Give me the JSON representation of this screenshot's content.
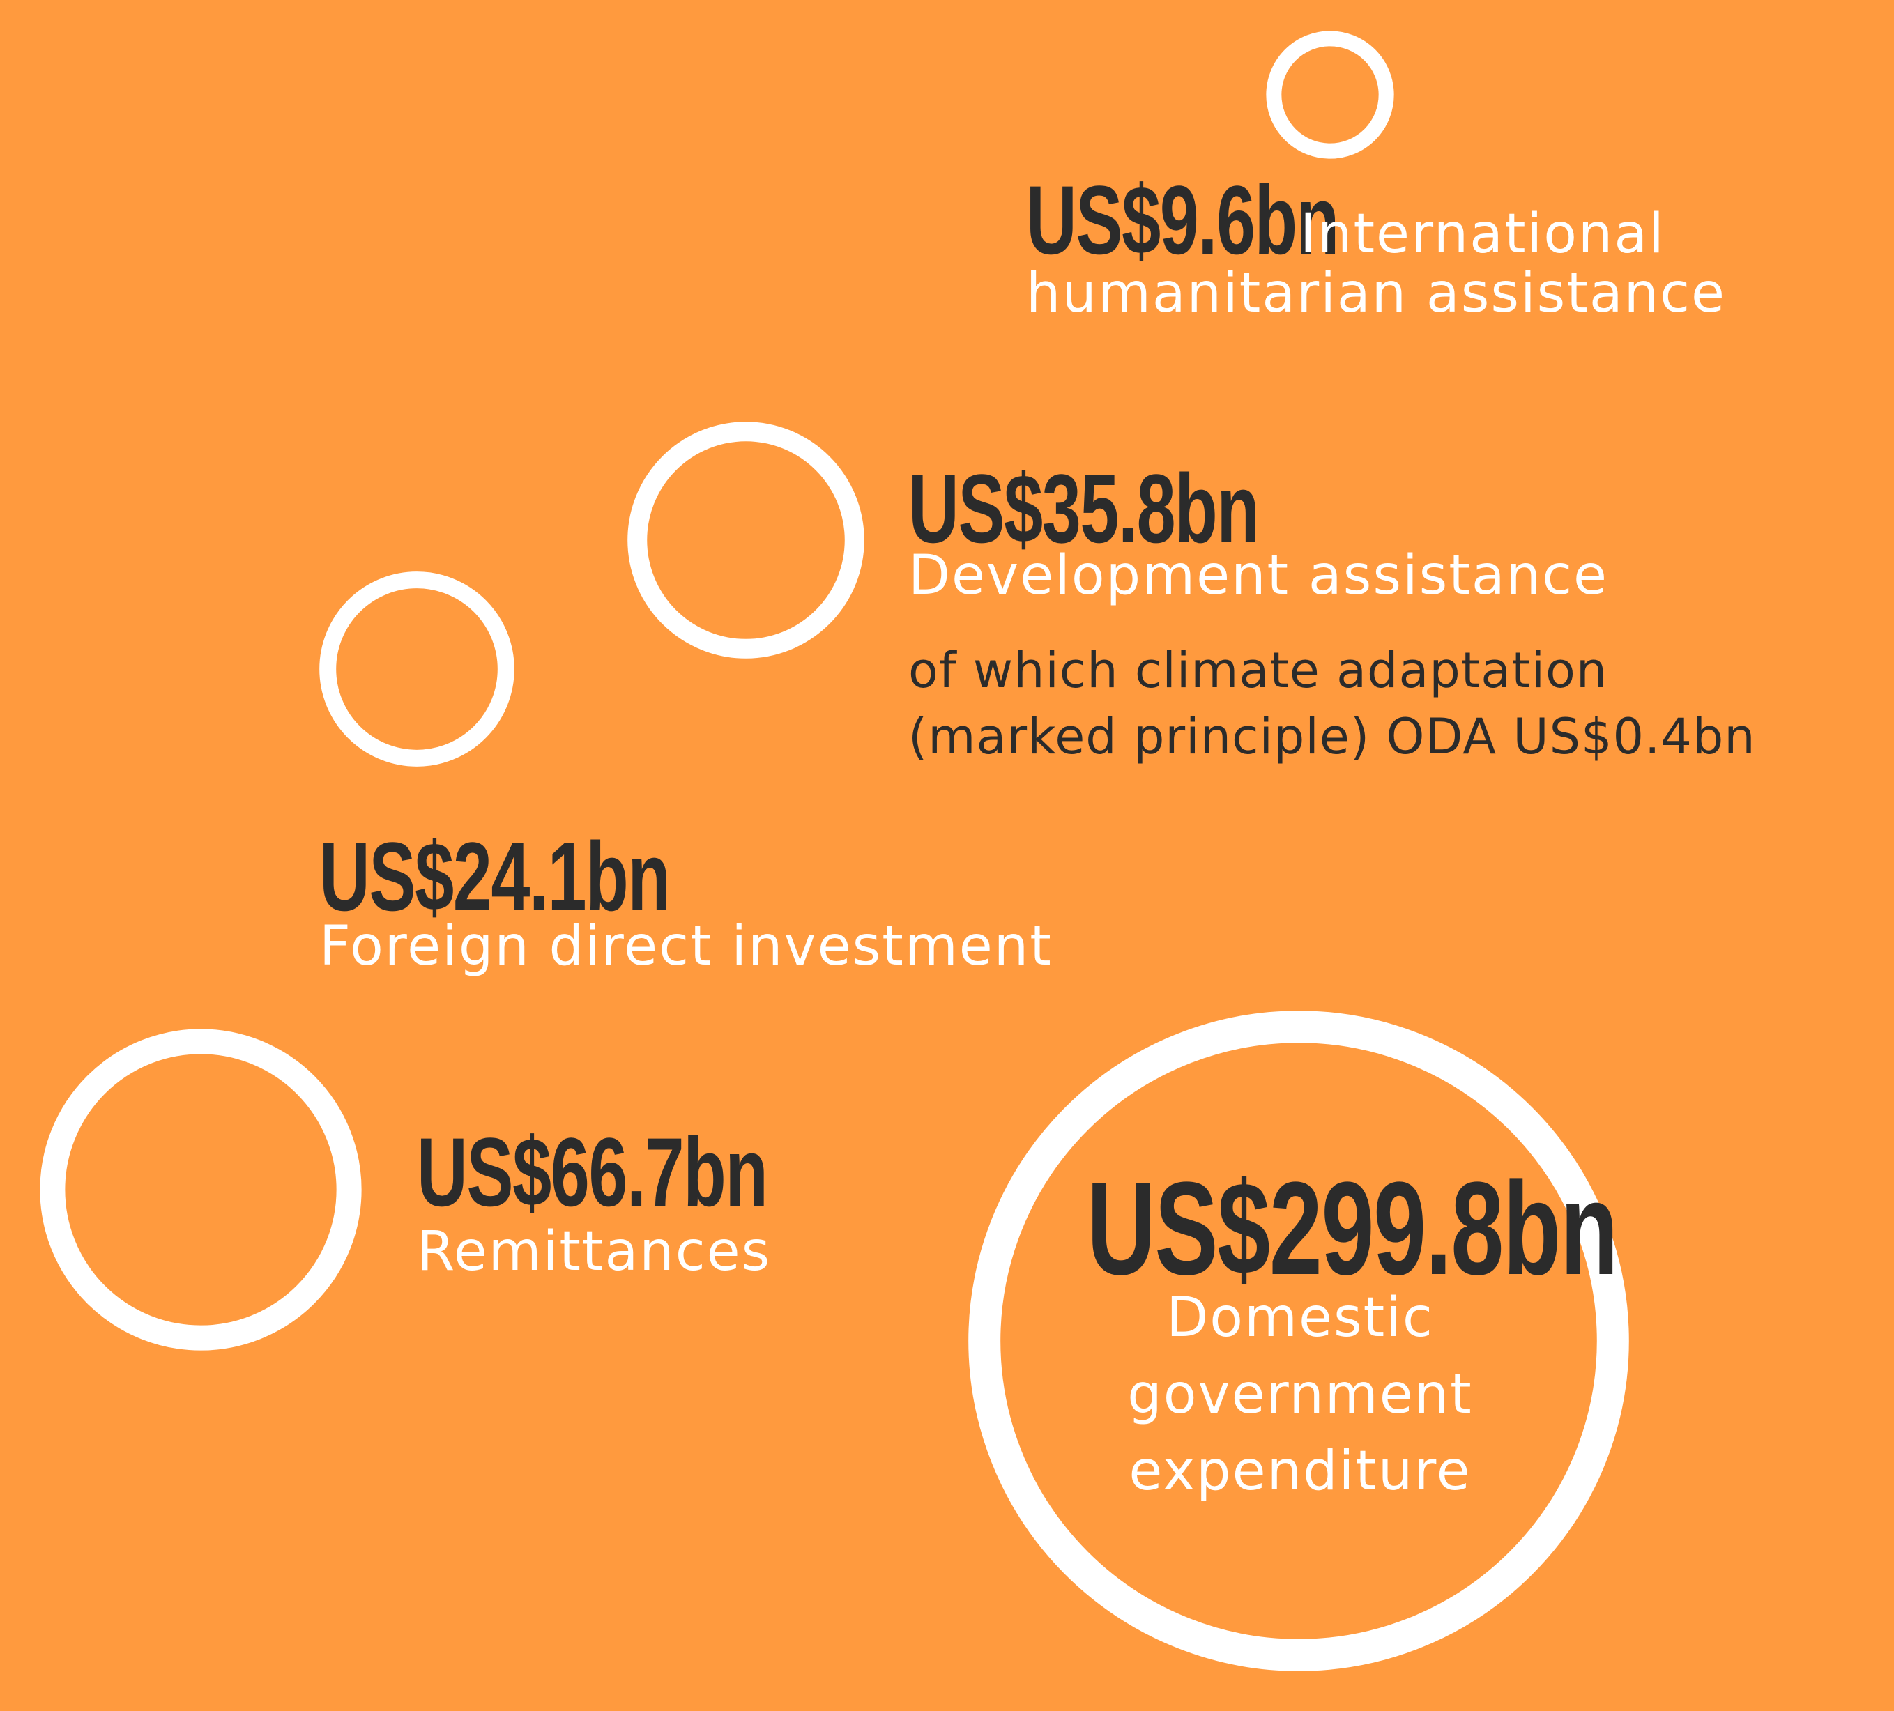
{
  "chart_data": {
    "type": "bubble",
    "title": "",
    "series": [
      {
        "name": "",
        "points": [
          {
            "key": "humanitarian",
            "amount_label": "US$9.6bn",
            "label": "International humanitarian assistance",
            "value": 9.6
          },
          {
            "key": "development",
            "amount_label": "US$35.8bn",
            "label": "Development assistance",
            "value": 35.8,
            "note": "of which climate adaptation (marked principle) ODA US$0.4bn"
          },
          {
            "key": "fdi",
            "amount_label": "US$24.1bn",
            "label": "Foreign direct investment",
            "value": 24.1
          },
          {
            "key": "remittances",
            "amount_label": "US$66.7bn",
            "label": "Remittances",
            "value": 66.7
          },
          {
            "key": "government",
            "amount_label": "US$299.8bn",
            "label": "Domestic government expenditure",
            "value": 299.8
          }
        ]
      }
    ],
    "colors": {
      "background": "#FF9A3E",
      "bubble_stroke": "#FFFFFF",
      "amount_text": "#2B2B2B",
      "label_text": "#FFFFFF",
      "note_text": "#2B2B2B"
    }
  },
  "texts": {
    "humanitarian_line1": "International",
    "humanitarian_line2": "humanitarian assistance",
    "development_note_line1": "of which climate adaptation",
    "development_note_line2": "(marked principle) ODA US$0.4bn",
    "government_line1": "Domestic",
    "government_line2": "government",
    "government_line3": "expenditure"
  }
}
